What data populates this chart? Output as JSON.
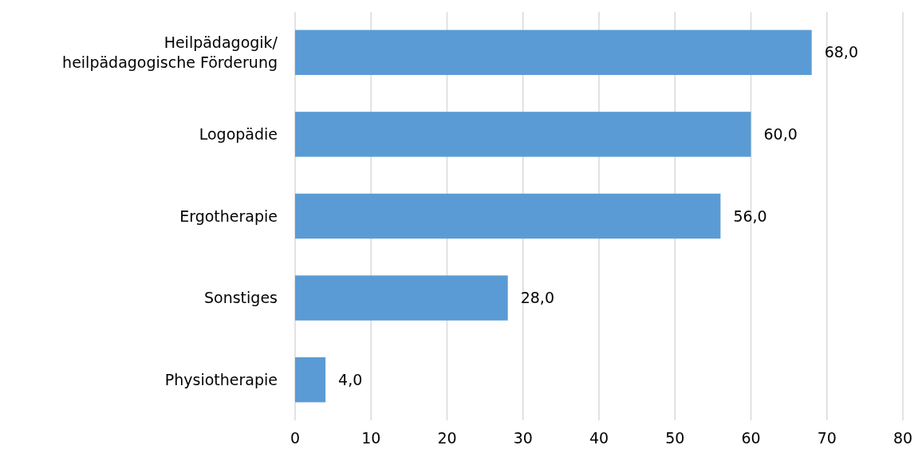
{
  "chart_data": {
    "type": "bar",
    "orientation": "horizontal",
    "categories": [
      "Heilpädagogik/heilpädagogische Förderung",
      "Logopädie",
      "Ergotherapie",
      "Sonstiges",
      "Physiotherapie"
    ],
    "values": [
      68,
      60,
      56,
      28,
      4
    ],
    "value_labels": [
      "68,0",
      "60,0",
      "56,0",
      "28,0",
      "4,0"
    ],
    "color": "#5b9bd5",
    "xlim": [
      0,
      80
    ],
    "xticks": [
      0,
      10,
      20,
      30,
      40,
      50,
      60,
      70,
      80
    ],
    "grid": "x"
  }
}
